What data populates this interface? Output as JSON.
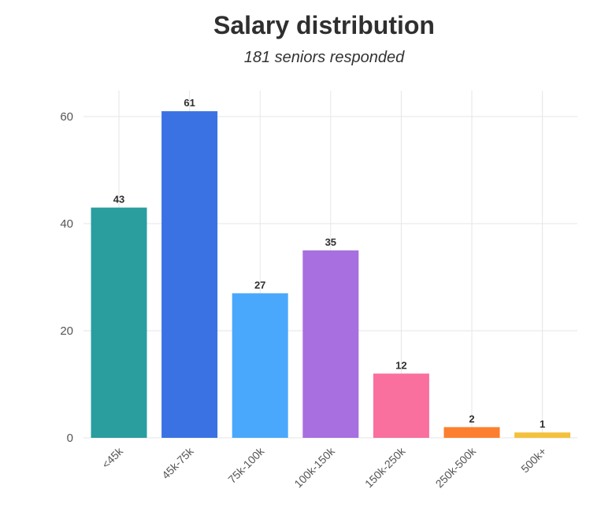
{
  "chart_data": {
    "type": "bar",
    "title": "Salary distribution",
    "subtitle": "181 seniors responded",
    "categories": [
      "<45k",
      "45k-75k",
      "75k-100k",
      "100k-150k",
      "150k-250k",
      "250k-500k",
      "500k+"
    ],
    "values": [
      43,
      61,
      27,
      35,
      12,
      2,
      1
    ],
    "data_labels": [
      "43",
      "61",
      "27",
      "35",
      "12",
      "2",
      "1"
    ],
    "colors": [
      "#2a9d9f",
      "#3a72e3",
      "#49a8fb",
      "#a76fe0",
      "#f96f9e",
      "#fb7f2e",
      "#f3c13b"
    ],
    "yticks": [
      0,
      20,
      40,
      60
    ],
    "ytick_labels": [
      "0",
      "20",
      "40",
      "60"
    ],
    "ylim": [
      0,
      64
    ],
    "grid": true,
    "xlabel": "",
    "ylabel": ""
  }
}
